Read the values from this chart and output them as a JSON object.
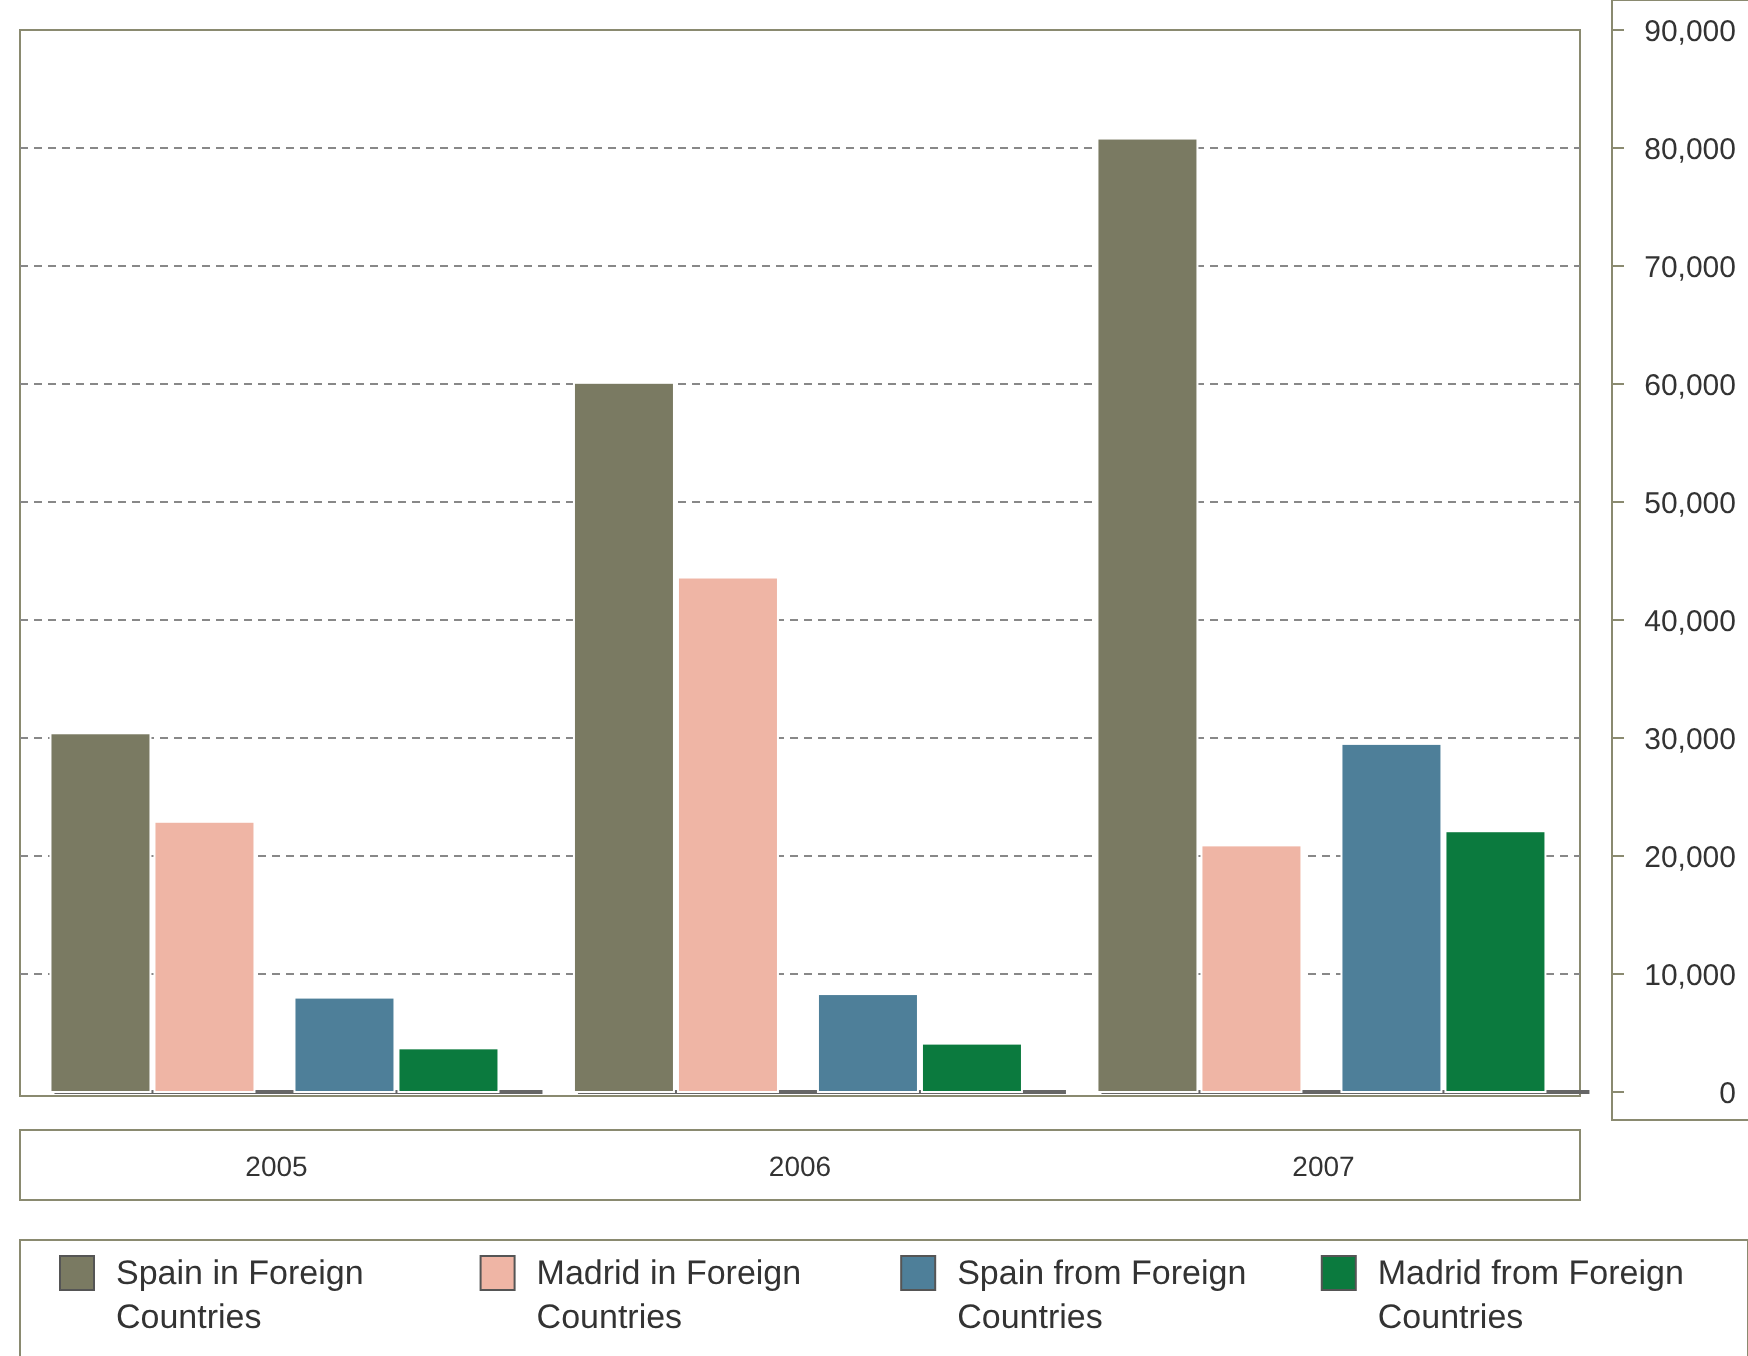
{
  "chart_data": {
    "type": "bar",
    "categories": [
      "2005",
      "2006",
      "2007"
    ],
    "series": [
      {
        "name": "Spain in Foreign Countries",
        "color": "#7a7a62",
        "values": [
          30400,
          60100,
          80800
        ]
      },
      {
        "name": "Madrid in Foreign Countries",
        "color": "#efb5a5",
        "values": [
          22900,
          43600,
          20900
        ]
      },
      {
        "name": "Spain from Foreign Countries",
        "color": "#4e7f99",
        "values": [
          8000,
          8300,
          29500
        ]
      },
      {
        "name": "Madrid from Foreign Countries",
        "color": "#0b7a3e",
        "values": [
          3700,
          4100,
          22100
        ]
      }
    ],
    "ylim": [
      0,
      90000
    ],
    "yticks": [
      {
        "value": 0,
        "label": "0"
      },
      {
        "value": 10000,
        "label": "10,000"
      },
      {
        "value": 20000,
        "label": "20,000"
      },
      {
        "value": 30000,
        "label": "30,000"
      },
      {
        "value": 40000,
        "label": "40,000"
      },
      {
        "value": 50000,
        "label": "50,000"
      },
      {
        "value": 60000,
        "label": "60,000"
      },
      {
        "value": 70000,
        "label": "70,000"
      },
      {
        "value": 80000,
        "label": "80,000"
      },
      {
        "value": 90000,
        "label": "90,000"
      }
    ],
    "grid": "y",
    "legend": "bottom"
  }
}
